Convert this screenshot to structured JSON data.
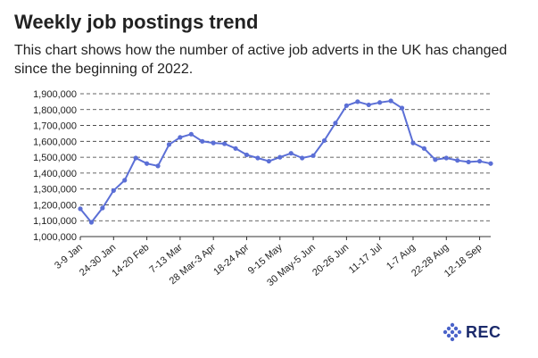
{
  "header": {
    "title": "Weekly job postings trend",
    "subtitle": "This chart shows how the number of active job adverts in the UK has changed since the beginning of 2022."
  },
  "brand": {
    "logo_text": "REC",
    "logo_color": "#1b2a6b",
    "accent": "#5b6fd6"
  },
  "chart_data": {
    "type": "line",
    "title": "",
    "xlabel": "",
    "ylabel": "",
    "ylim": [
      1000000,
      1900000
    ],
    "yticks": [
      "1,000,000",
      "1,100,000",
      "1,200,000",
      "1,300,000",
      "1,400,000",
      "1,500,000",
      "1,600,000",
      "1,700,000",
      "1,800,000",
      "1,900,000"
    ],
    "grid": "horizontal dashed",
    "line_color": "#5b6fd6",
    "tick_labels": [
      "3-9 Jan",
      "24-30 Jan",
      "14-20 Feb",
      "7-13 Mar",
      "28 Mar-3 Apr",
      "18-24 Apr",
      "9-15 May",
      "30 May-5 Jun",
      "20-26 Jun",
      "11-17 Jul",
      "1-7 Aug",
      "22-28 Aug",
      "12-18 Sep"
    ],
    "values": [
      1175000,
      1090000,
      1180000,
      1290000,
      1355000,
      1495000,
      1460000,
      1445000,
      1580000,
      1625000,
      1645000,
      1600000,
      1590000,
      1585000,
      1555000,
      1515000,
      1495000,
      1475000,
      1500000,
      1525000,
      1495000,
      1510000,
      1605000,
      1715000,
      1825000,
      1850000,
      1830000,
      1845000,
      1855000,
      1810000,
      1590000,
      1555000,
      1485000,
      1495000,
      1480000,
      1470000,
      1475000,
      1460000
    ]
  }
}
